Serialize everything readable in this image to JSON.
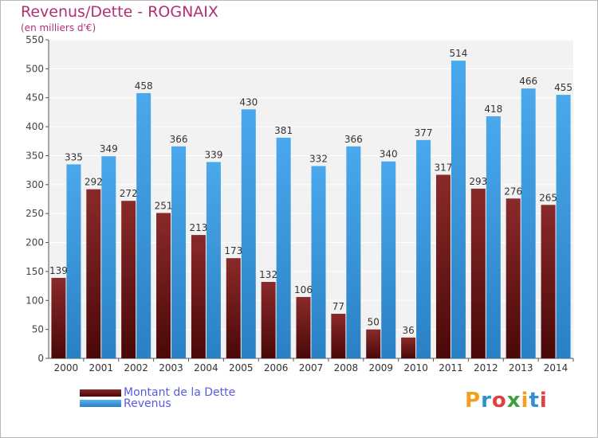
{
  "header": {
    "title": "Revenus/Dette - ROGNAIX",
    "subtitle": "(en milliers d'€)"
  },
  "brand": {
    "letters": [
      "P",
      "r",
      "o",
      "x",
      "i",
      "t",
      "i"
    ],
    "colors": [
      "#f0a020",
      "#3090d0",
      "#e04040",
      "#40a040",
      "#f0a020",
      "#3090d0",
      "#e04040"
    ]
  },
  "chart_data": {
    "type": "bar",
    "title": "Revenus/Dette - ROGNAIX",
    "subtitle": "(en milliers d'€)",
    "categories": [
      "2000",
      "2001",
      "2002",
      "2003",
      "2004",
      "2005",
      "2006",
      "2007",
      "2008",
      "2009",
      "2010",
      "2011",
      "2012",
      "2013",
      "2014"
    ],
    "series": [
      {
        "name": "Montant de la Dette",
        "color": "#7a1a1a",
        "values": [
          139,
          292,
          272,
          251,
          213,
          173,
          132,
          106,
          77,
          50,
          36,
          317,
          293,
          276,
          265
        ]
      },
      {
        "name": "Revenus",
        "color": "#3a98dc",
        "values": [
          335,
          349,
          458,
          366,
          339,
          430,
          381,
          332,
          366,
          340,
          377,
          514,
          418,
          466,
          455
        ]
      }
    ],
    "ylim": [
      0,
      550
    ],
    "yticks": [
      0,
      50,
      100,
      150,
      200,
      250,
      300,
      350,
      400,
      450,
      500,
      550
    ],
    "grid": true,
    "legend": "bottom-left"
  }
}
